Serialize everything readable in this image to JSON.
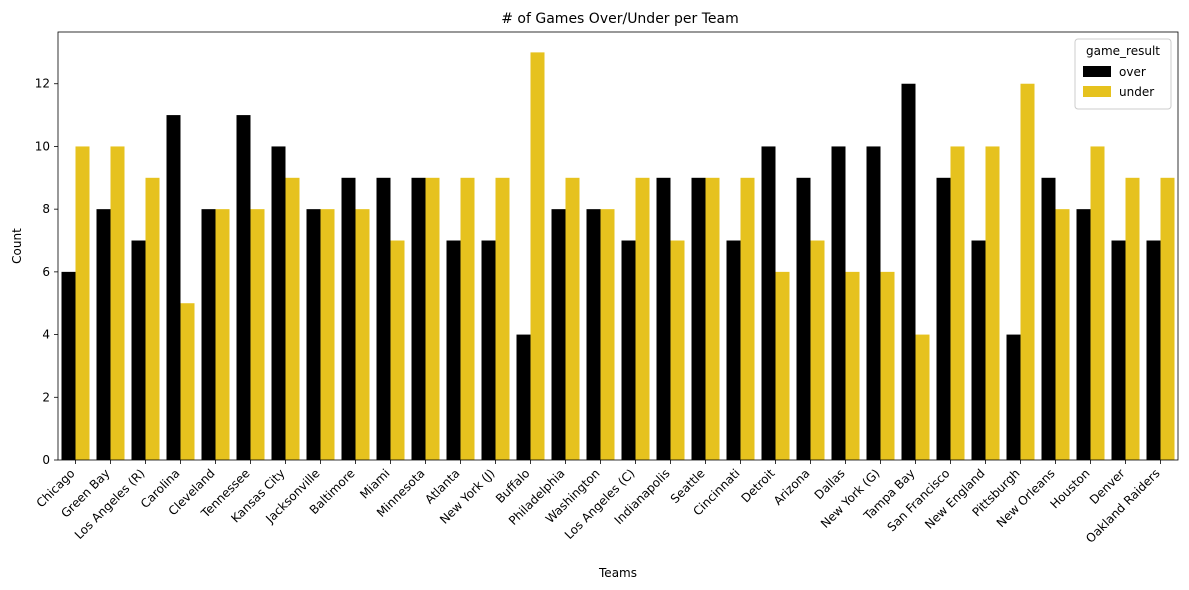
{
  "chart_data": {
    "type": "bar",
    "title": "# of Games Over/Under per Team",
    "xlabel": "Teams",
    "ylabel": "Count",
    "ylim": [
      0,
      13.65
    ],
    "yticks": [
      0,
      2,
      4,
      6,
      8,
      10,
      12
    ],
    "grid": false,
    "legend": {
      "title": "game_result",
      "position": "top-right"
    },
    "categories": [
      "Chicago",
      "Green Bay",
      "Los Angeles (R)",
      "Carolina",
      "Cleveland",
      "Tennessee",
      "Kansas City",
      "Jacksonville",
      "Baltimore",
      "Miami",
      "Minnesota",
      "Atlanta",
      "New York (J)",
      "Buffalo",
      "Philadelphia",
      "Washington",
      "Los Angeles (C)",
      "Indianapolis",
      "Seattle",
      "Cincinnati",
      "Detroit",
      "Arizona",
      "Dallas",
      "New York (G)",
      "Tampa Bay",
      "San Francisco",
      "New England",
      "Pittsburgh",
      "New Orleans",
      "Houston",
      "Denver",
      "Oakland Raiders"
    ],
    "series": [
      {
        "name": "over",
        "color": "#000000",
        "values": [
          6,
          8,
          7,
          11,
          8,
          11,
          10,
          8,
          9,
          9,
          9,
          7,
          7,
          4,
          8,
          8,
          7,
          9,
          9,
          7,
          10,
          9,
          10,
          10,
          12,
          9,
          7,
          4,
          9,
          8,
          7,
          7
        ]
      },
      {
        "name": "under",
        "color": "#E6C21E",
        "values": [
          10,
          10,
          9,
          5,
          8,
          8,
          9,
          8,
          8,
          7,
          9,
          9,
          9,
          13,
          9,
          8,
          9,
          7,
          9,
          9,
          6,
          7,
          6,
          6,
          4,
          10,
          10,
          12,
          8,
          10,
          9,
          9
        ]
      }
    ]
  }
}
